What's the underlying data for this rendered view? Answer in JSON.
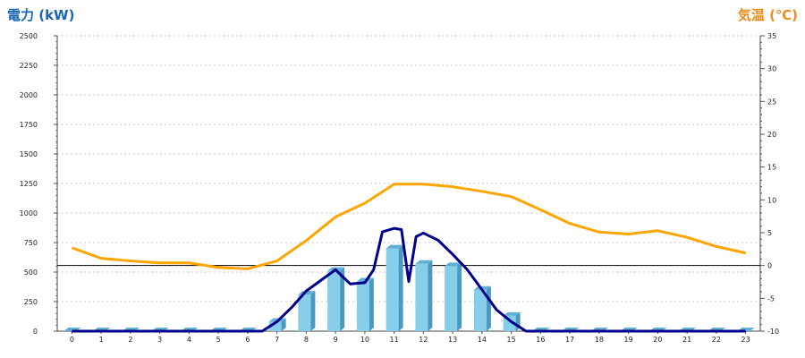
{
  "chart_data": {
    "type": "bar",
    "title_left": "電力 (kW)",
    "title_right": "気温 (℃)",
    "categories": [
      "0",
      "1",
      "2",
      "3",
      "4",
      "5",
      "6",
      "7",
      "8",
      "9",
      "10",
      "11",
      "12",
      "13",
      "14",
      "15",
      "16",
      "17",
      "18",
      "19",
      "20",
      "21",
      "22",
      "23"
    ],
    "y_left": {
      "ticks": [
        "0",
        "250",
        "500",
        "750",
        "1000",
        "1250",
        "1500",
        "1750",
        "2000",
        "2250",
        "2500"
      ],
      "range": [
        0,
        2500
      ]
    },
    "y_right": {
      "ticks": [
        "-10",
        "-5",
        "0",
        "5",
        "10",
        "15",
        "20",
        "25",
        "30",
        "35"
      ],
      "range": [
        -10,
        35
      ]
    },
    "series": [
      {
        "type": "bar",
        "axis": "left",
        "color": "#87ceeb",
        "values": [
          0,
          0,
          0,
          0,
          0,
          0,
          0,
          80,
          310,
          510,
          420,
          700,
          570,
          550,
          350,
          130,
          0,
          0,
          0,
          0,
          0,
          0,
          0,
          0
        ]
      },
      {
        "type": "line",
        "axis": "left",
        "color": "#00008b",
        "x": [
          0,
          1,
          2,
          3,
          4,
          5,
          6,
          6.5,
          7,
          7.5,
          8,
          8.5,
          9,
          9.5,
          10,
          10.3,
          10.6,
          11,
          11.25,
          11.5,
          11.75,
          12,
          12.5,
          13,
          13.5,
          14,
          14.5,
          15,
          15.5,
          16,
          17,
          18,
          19,
          20,
          21,
          22,
          23
        ],
        "values": [
          0,
          0,
          0,
          0,
          0,
          0,
          0,
          0,
          80,
          200,
          340,
          430,
          520,
          400,
          410,
          520,
          840,
          870,
          860,
          420,
          800,
          830,
          770,
          650,
          520,
          350,
          180,
          80,
          0,
          0,
          0,
          0,
          0,
          0,
          0,
          0,
          0
        ]
      },
      {
        "type": "line",
        "axis": "right",
        "color": "#ffa500",
        "values": [
          2.7,
          1.1,
          0.7,
          0.4,
          0.4,
          -0.3,
          -0.5,
          0.7,
          3.8,
          7.4,
          9.5,
          12.4,
          12.4,
          12.0,
          11.3,
          10.5,
          8.5,
          6.4,
          5.1,
          4.8,
          5.3,
          4.3,
          2.9,
          1.9
        ]
      }
    ],
    "grid": true
  }
}
